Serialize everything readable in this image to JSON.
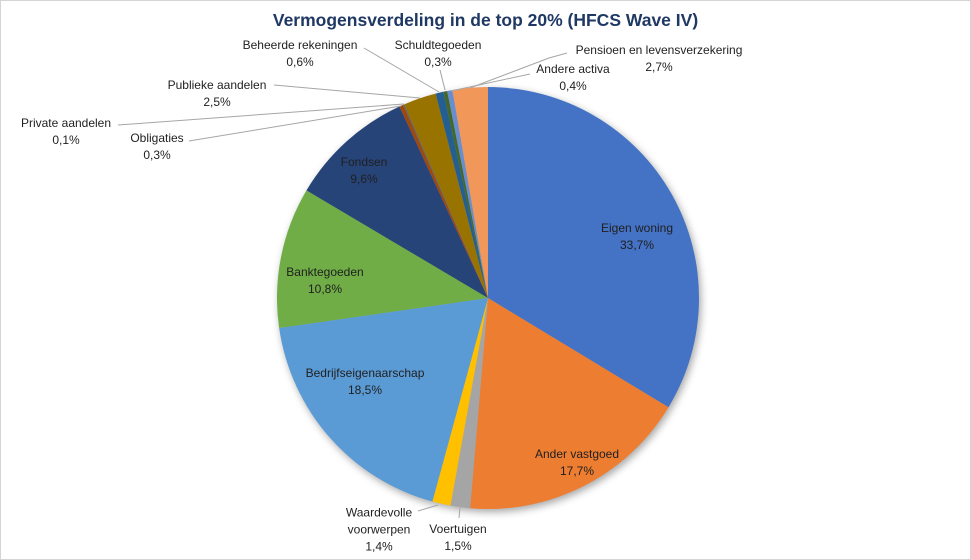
{
  "chart_data": {
    "type": "pie",
    "title": "Vermogensverdeling in de top 20% (HFCS Wave IV)",
    "unit": "%",
    "decimal_separator": ",",
    "layout_hints": {
      "start_angle_deg": 0,
      "direction": "clockwise",
      "legend": "none",
      "labels": "category name + percentage; small slices labeled outside with leader lines"
    },
    "slices": [
      {
        "id": "eigen-woning",
        "label": "Eigen woning",
        "value": 33.7,
        "pct_label": "33,7%",
        "color": "#4472C4",
        "label_placement": "inside",
        "lines": [
          "Eigen woning",
          "33,7%"
        ]
      },
      {
        "id": "ander-vastgoed",
        "label": "Ander vastgoed",
        "value": 17.7,
        "pct_label": "17,7%",
        "color": "#ED7D31",
        "label_placement": "inside",
        "lines": [
          "Ander vastgoed",
          "17,7%"
        ]
      },
      {
        "id": "voertuigen",
        "label": "Voertuigen",
        "value": 1.5,
        "pct_label": "1,5%",
        "color": "#A5A5A5",
        "label_placement": "outside",
        "lines": [
          "Voertuigen",
          "1,5%"
        ]
      },
      {
        "id": "waardevolle-voorwerpen",
        "label": "Waardevolle voorwerpen",
        "value": 1.4,
        "pct_label": "1,4%",
        "color": "#FFC000",
        "label_placement": "outside",
        "lines": [
          "Waardevolle",
          "voorwerpen",
          "1,4%"
        ]
      },
      {
        "id": "bedrijfseigenaarschap",
        "label": "Bedrijfseigenaarschap",
        "value": 18.5,
        "pct_label": "18,5%",
        "color": "#5B9BD5",
        "label_placement": "inside",
        "lines": [
          "Bedrijfseigenaarschap",
          "18,5%"
        ]
      },
      {
        "id": "banktegoeden",
        "label": "Banktegoeden",
        "value": 10.8,
        "pct_label": "10,8%",
        "color": "#70AD47",
        "label_placement": "inside",
        "lines": [
          "Banktegoeden",
          "10,8%"
        ]
      },
      {
        "id": "fondsen",
        "label": "Fondsen",
        "value": 9.6,
        "pct_label": "9,6%",
        "color": "#264478",
        "label_placement": "inside",
        "lines": [
          "Fondsen",
          "9,6%"
        ]
      },
      {
        "id": "obligaties",
        "label": "Obligaties",
        "value": 0.3,
        "pct_label": "0,3%",
        "color": "#9E480E",
        "label_placement": "outside",
        "lines": [
          "Obligaties",
          "0,3%"
        ]
      },
      {
        "id": "private-aandelen",
        "label": "Private aandelen",
        "value": 0.1,
        "pct_label": "0,1%",
        "color": "#636363",
        "label_placement": "outside",
        "lines": [
          "Private aandelen",
          "0,1%"
        ]
      },
      {
        "id": "publieke-aandelen",
        "label": "Publieke aandelen",
        "value": 2.5,
        "pct_label": "2,5%",
        "color": "#997300",
        "label_placement": "outside",
        "lines": [
          "Publieke aandelen",
          "2,5%"
        ]
      },
      {
        "id": "beheerde-rekeningen",
        "label": "Beheerde rekeningen",
        "value": 0.6,
        "pct_label": "0,6%",
        "color": "#255E91",
        "label_placement": "outside",
        "lines": [
          "Beheerde rekeningen",
          "0,6%"
        ]
      },
      {
        "id": "schuldtegoeden",
        "label": "Schuldtegoeden",
        "value": 0.3,
        "pct_label": "0,3%",
        "color": "#43682B",
        "label_placement": "outside",
        "lines": [
          "Schuldtegoeden",
          "0,3%"
        ]
      },
      {
        "id": "andere-activa",
        "label": "Andere activa",
        "value": 0.4,
        "pct_label": "0,4%",
        "color": "#698ED0",
        "label_placement": "outside",
        "lines": [
          "Andere activa",
          "0,4%"
        ]
      },
      {
        "id": "pensioen-en-levensverzekering",
        "label": "Pensioen en levensverzekering",
        "value": 2.7,
        "pct_label": "2,7%",
        "color": "#F1975A",
        "label_placement": "outside",
        "lines": [
          "Pensioen en levensverzekering",
          "2,7%"
        ]
      }
    ]
  },
  "colors": {
    "title_text": "#1F3864",
    "label_text": "#1F1F1F",
    "leader_line": "#A6A6A6",
    "canvas_border": "#D4D4D4",
    "background": "#FFFFFF"
  }
}
